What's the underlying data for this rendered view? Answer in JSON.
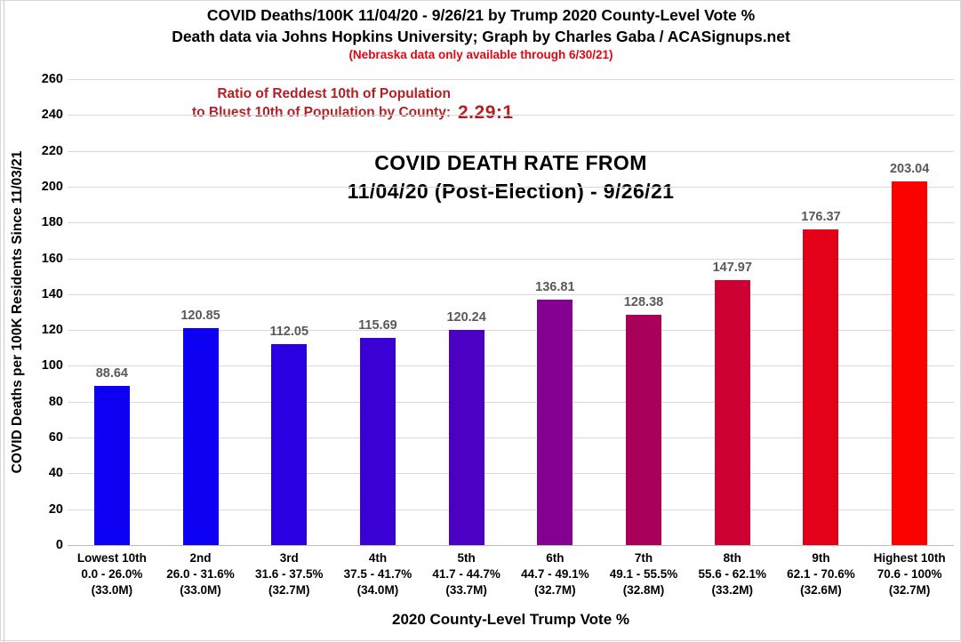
{
  "header": {
    "title_line1": "COVID Deaths/100K 11/04/20 - 9/26/21 by Trump 2020 County-Level Vote %",
    "title_line2": "Death data via Johns Hopkins University; Graph by Charles Gaba / ACASignups.net",
    "note": "(Nebraska data only available through 6/30/21)",
    "note_color": "#e30613"
  },
  "ratio": {
    "line1": "Ratio of Reddest 10th of Population",
    "line2": "to Bluest 10th of Population by County:",
    "value": "2.29:1",
    "color": "#b41f24"
  },
  "chart_data": {
    "type": "bar",
    "title_line1": "COVID DEATH RATE FROM",
    "title_line2": "11/04/20 (Post-Election) - 9/26/21",
    "ylabel": "COVID Deaths per 100K Residents Since 11/03/21",
    "xlabel": "2020 County-Level Trump Vote %",
    "ylim": [
      0,
      260
    ],
    "yticks": [
      0,
      20,
      40,
      60,
      80,
      100,
      120,
      140,
      160,
      180,
      200,
      220,
      240,
      260
    ],
    "grid": true,
    "gridline_color": "#d9d9d9",
    "value_label_color": "#595959",
    "legend": "none",
    "categories": [
      {
        "ordinal": "Lowest 10th",
        "range": "0.0 - 26.0%",
        "population": "(33.0M)",
        "value": 88.64,
        "value_label": "88.64",
        "color": "#0d00f2"
      },
      {
        "ordinal": "2nd",
        "range": "26.0 - 31.6%",
        "population": "(33.0M)",
        "value": 120.85,
        "value_label": "120.85",
        "color": "#0d00f2"
      },
      {
        "ordinal": "3rd",
        "range": "31.6 - 37.5%",
        "population": "(32.7M)",
        "value": 112.05,
        "value_label": "112.05",
        "color": "#2a00e2"
      },
      {
        "ordinal": "4th",
        "range": "37.5 - 41.7%",
        "population": "(34.0M)",
        "value": 115.69,
        "value_label": "115.69",
        "color": "#3b00d4"
      },
      {
        "ordinal": "5th",
        "range": "41.7 - 44.7%",
        "population": "(33.7M)",
        "value": 120.24,
        "value_label": "120.24",
        "color": "#4c00c4"
      },
      {
        "ordinal": "6th",
        "range": "44.7 - 49.1%",
        "population": "(32.7M)",
        "value": 136.81,
        "value_label": "136.81",
        "color": "#830091"
      },
      {
        "ordinal": "7th",
        "range": "49.1 - 55.5%",
        "population": "(32.8M)",
        "value": 128.38,
        "value_label": "128.38",
        "color": "#a9005a"
      },
      {
        "ordinal": "8th",
        "range": "55.6 - 62.1%",
        "population": "(33.2M)",
        "value": 147.97,
        "value_label": "147.97",
        "color": "#cd0033"
      },
      {
        "ordinal": "9th",
        "range": "62.1 - 70.6%",
        "population": "(32.6M)",
        "value": 176.37,
        "value_label": "176.37",
        "color": "#e50019"
      },
      {
        "ordinal": "Highest 10th",
        "range": "70.6 - 100%",
        "population": "(32.7M)",
        "value": 203.04,
        "value_label": "203.04",
        "color": "#fb0200"
      }
    ]
  }
}
